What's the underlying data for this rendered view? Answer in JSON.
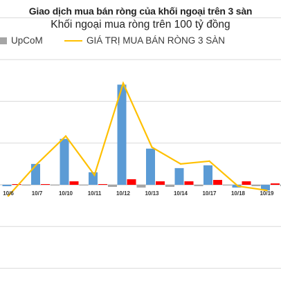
{
  "title": "Giao dịch mua bán ròng của khối ngoại trên 3 sàn",
  "subtitle": "Khối ngoại mua ròng trên 100 tỷ đồng",
  "legend": {
    "upcom": "UpCoM",
    "total": "GIÁ TRỊ MUA BÁN RÒNG 3 SÀN"
  },
  "colors": {
    "hose": "#5b9bd5",
    "hnx": "#ff0000",
    "upcom": "#a5a5a5",
    "total": "#ffc000",
    "grid": "#d9d9d9"
  },
  "chart_data": {
    "type": "bar",
    "categories": [
      "10/6",
      "10/7",
      "10/10",
      "10/11",
      "10/12",
      "10/13",
      "10/14",
      "10/17",
      "10/18",
      "10/19"
    ],
    "ylim": [
      -60,
      140
    ],
    "gridlines": [
      -60,
      -30,
      0,
      30,
      60,
      90,
      120
    ],
    "grid": true,
    "legend_position": "top",
    "series": [
      {
        "key": "hose",
        "kind": "bar",
        "values": [
          -1,
          15,
          33,
          9,
          72,
          26,
          12,
          14,
          -2,
          -4
        ]
      },
      {
        "key": "hnx",
        "kind": "bar",
        "values": [
          0.5,
          0.5,
          2.5,
          0.5,
          4,
          2.5,
          2.5,
          3.5,
          2.5,
          1
        ]
      },
      {
        "key": "upcom",
        "name": "UpCoM",
        "kind": "bar",
        "values": [
          -0.5,
          -0.5,
          -0.5,
          -1.5,
          -2,
          -1.5,
          -1,
          -0.5,
          -1,
          -1
        ]
      },
      {
        "key": "total",
        "name": "GIÁ TRỊ MUA BÁN RÒNG 3 SÀN",
        "kind": "line",
        "values": [
          -8,
          15,
          35,
          7,
          73,
          27,
          15,
          17,
          -1,
          -4
        ]
      }
    ]
  }
}
